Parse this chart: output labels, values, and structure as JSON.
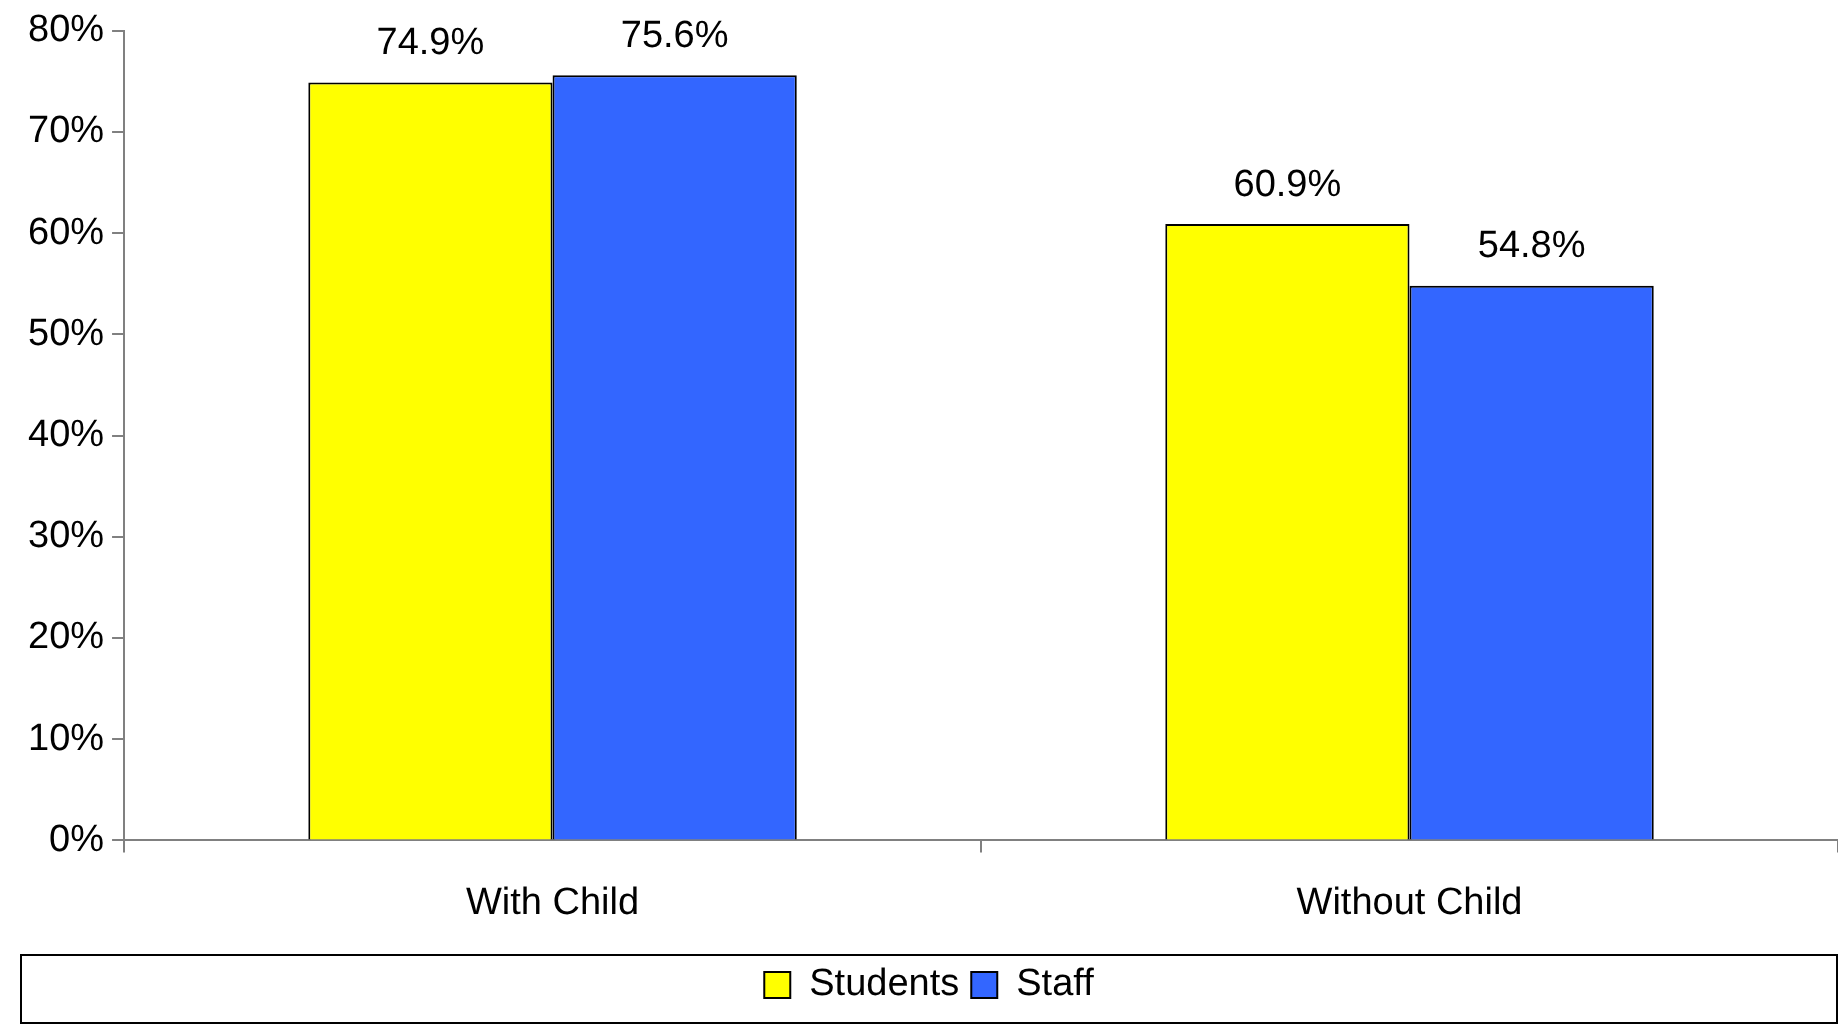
{
  "chart_data": {
    "type": "bar",
    "categories": [
      "With Child",
      "Without Child"
    ],
    "series": [
      {
        "name": "Students",
        "color": "#ffff00",
        "values": [
          74.9,
          60.9
        ],
        "value_labels": [
          "74.9%",
          "60.9%"
        ]
      },
      {
        "name": "Staff",
        "color": "#3366ff",
        "values": [
          75.6,
          54.8
        ],
        "value_labels": [
          "75.6%",
          "54.8%"
        ]
      }
    ],
    "ylim": [
      0,
      80
    ],
    "yticks": [
      {
        "value": 0,
        "label": "0%"
      },
      {
        "value": 10,
        "label": "10%"
      },
      {
        "value": 20,
        "label": "20%"
      },
      {
        "value": 30,
        "label": "30%"
      },
      {
        "value": 40,
        "label": "40%"
      },
      {
        "value": 50,
        "label": "50%"
      },
      {
        "value": 60,
        "label": "60%"
      },
      {
        "value": 70,
        "label": "70%"
      },
      {
        "value": 80,
        "label": "80%"
      }
    ],
    "grid": false,
    "legend": "bottom"
  }
}
